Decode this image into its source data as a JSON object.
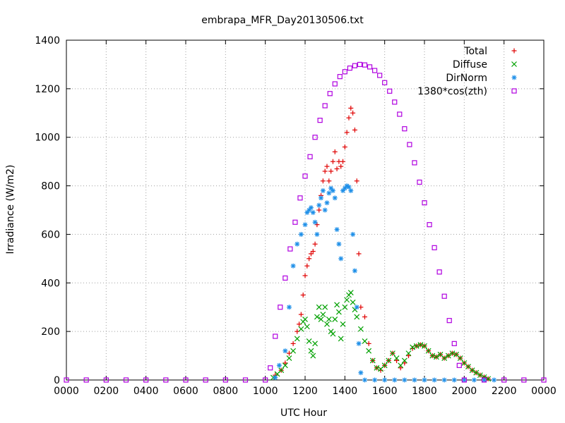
{
  "chart_data": {
    "type": "scatter",
    "title": "embrapa_MFR_Day20130506.txt",
    "xlabel": "UTC Hour",
    "ylabel": "Irradiance (W/m2)",
    "xlim": [
      0,
      24
    ],
    "ylim": [
      0,
      1400
    ],
    "grid": true,
    "legend_position": "top-right",
    "x_ticks": [
      {
        "value": 0,
        "label": "0000"
      },
      {
        "value": 2,
        "label": "0200"
      },
      {
        "value": 4,
        "label": "0400"
      },
      {
        "value": 6,
        "label": "0600"
      },
      {
        "value": 8,
        "label": "0800"
      },
      {
        "value": 10,
        "label": "1000"
      },
      {
        "value": 12,
        "label": "1200"
      },
      {
        "value": 14,
        "label": "1400"
      },
      {
        "value": 16,
        "label": "1600"
      },
      {
        "value": 18,
        "label": "1800"
      },
      {
        "value": 20,
        "label": "2000"
      },
      {
        "value": 22,
        "label": "2200"
      },
      {
        "value": 24,
        "label": "0000"
      }
    ],
    "y_ticks": [
      0,
      200,
      400,
      600,
      800,
      1000,
      1200,
      1400
    ],
    "series": [
      {
        "name": "Total",
        "marker": "+",
        "color": "#e00000",
        "points": [
          [
            10.5,
            20
          ],
          [
            10.8,
            40
          ],
          [
            11.0,
            70
          ],
          [
            11.2,
            110
          ],
          [
            11.4,
            150
          ],
          [
            11.6,
            200
          ],
          [
            11.7,
            230
          ],
          [
            11.8,
            270
          ],
          [
            11.9,
            350
          ],
          [
            12.0,
            430
          ],
          [
            12.1,
            470
          ],
          [
            12.2,
            500
          ],
          [
            12.3,
            520
          ],
          [
            12.4,
            530
          ],
          [
            12.5,
            560
          ],
          [
            12.6,
            640
          ],
          [
            12.7,
            700
          ],
          [
            12.8,
            760
          ],
          [
            12.9,
            820
          ],
          [
            13.0,
            860
          ],
          [
            13.1,
            880
          ],
          [
            13.2,
            820
          ],
          [
            13.3,
            860
          ],
          [
            13.4,
            900
          ],
          [
            13.5,
            940
          ],
          [
            13.6,
            870
          ],
          [
            13.7,
            900
          ],
          [
            13.8,
            880
          ],
          [
            13.9,
            900
          ],
          [
            14.0,
            960
          ],
          [
            14.1,
            1020
          ],
          [
            14.2,
            1080
          ],
          [
            14.3,
            1120
          ],
          [
            14.4,
            1100
          ],
          [
            14.5,
            1030
          ],
          [
            14.6,
            820
          ],
          [
            14.7,
            520
          ],
          [
            14.8,
            300
          ],
          [
            15.0,
            260
          ],
          [
            15.2,
            150
          ],
          [
            15.4,
            80
          ],
          [
            15.6,
            50
          ],
          [
            15.8,
            40
          ],
          [
            16.0,
            60
          ],
          [
            16.2,
            80
          ],
          [
            16.4,
            110
          ],
          [
            16.6,
            80
          ],
          [
            16.8,
            50
          ],
          [
            17.0,
            70
          ],
          [
            17.2,
            100
          ],
          [
            17.4,
            130
          ],
          [
            17.6,
            140
          ],
          [
            17.8,
            145
          ],
          [
            18.0,
            140
          ],
          [
            18.2,
            120
          ],
          [
            18.4,
            100
          ],
          [
            18.6,
            95
          ],
          [
            18.8,
            105
          ],
          [
            19.0,
            90
          ],
          [
            19.2,
            100
          ],
          [
            19.4,
            110
          ],
          [
            19.6,
            105
          ],
          [
            19.8,
            90
          ],
          [
            20.0,
            70
          ],
          [
            20.2,
            55
          ],
          [
            20.4,
            40
          ],
          [
            20.6,
            30
          ],
          [
            20.8,
            20
          ],
          [
            21.0,
            12
          ],
          [
            21.2,
            5
          ]
        ]
      },
      {
        "name": "Diffuse",
        "marker": "x",
        "color": "#00a000",
        "points": [
          [
            10.4,
            10
          ],
          [
            10.6,
            25
          ],
          [
            10.8,
            40
          ],
          [
            11.0,
            60
          ],
          [
            11.2,
            90
          ],
          [
            11.4,
            120
          ],
          [
            11.6,
            170
          ],
          [
            11.8,
            210
          ],
          [
            11.9,
            240
          ],
          [
            12.0,
            250
          ],
          [
            12.1,
            220
          ],
          [
            12.2,
            160
          ],
          [
            12.3,
            120
          ],
          [
            12.4,
            100
          ],
          [
            12.5,
            150
          ],
          [
            12.6,
            260
          ],
          [
            12.7,
            300
          ],
          [
            12.8,
            250
          ],
          [
            12.9,
            270
          ],
          [
            13.0,
            300
          ],
          [
            13.1,
            230
          ],
          [
            13.2,
            250
          ],
          [
            13.3,
            200
          ],
          [
            13.4,
            190
          ],
          [
            13.5,
            250
          ],
          [
            13.6,
            310
          ],
          [
            13.7,
            280
          ],
          [
            13.8,
            170
          ],
          [
            13.9,
            230
          ],
          [
            14.0,
            300
          ],
          [
            14.1,
            330
          ],
          [
            14.2,
            350
          ],
          [
            14.3,
            360
          ],
          [
            14.4,
            320
          ],
          [
            14.5,
            290
          ],
          [
            14.6,
            260
          ],
          [
            14.8,
            210
          ],
          [
            15.0,
            160
          ],
          [
            15.2,
            120
          ],
          [
            15.4,
            80
          ],
          [
            15.6,
            50
          ],
          [
            15.8,
            45
          ],
          [
            16.0,
            60
          ],
          [
            16.2,
            80
          ],
          [
            16.4,
            110
          ],
          [
            16.6,
            90
          ],
          [
            16.8,
            60
          ],
          [
            17.0,
            80
          ],
          [
            17.2,
            110
          ],
          [
            17.4,
            135
          ],
          [
            17.6,
            140
          ],
          [
            17.8,
            145
          ],
          [
            18.0,
            140
          ],
          [
            18.2,
            120
          ],
          [
            18.4,
            100
          ],
          [
            18.6,
            95
          ],
          [
            18.8,
            105
          ],
          [
            19.0,
            90
          ],
          [
            19.2,
            100
          ],
          [
            19.4,
            110
          ],
          [
            19.6,
            105
          ],
          [
            19.8,
            90
          ],
          [
            20.0,
            70
          ],
          [
            20.2,
            55
          ],
          [
            20.4,
            40
          ],
          [
            20.6,
            30
          ],
          [
            20.8,
            20
          ],
          [
            21.0,
            12
          ],
          [
            21.2,
            5
          ]
        ]
      },
      {
        "name": "DirNorm",
        "marker": "*",
        "color": "#1e8fe8",
        "points": [
          [
            10.5,
            10
          ],
          [
            10.7,
            60
          ],
          [
            11.0,
            120
          ],
          [
            11.2,
            300
          ],
          [
            11.4,
            470
          ],
          [
            11.6,
            560
          ],
          [
            11.8,
            600
          ],
          [
            12.0,
            640
          ],
          [
            12.1,
            690
          ],
          [
            12.2,
            700
          ],
          [
            12.3,
            710
          ],
          [
            12.4,
            690
          ],
          [
            12.5,
            650
          ],
          [
            12.6,
            600
          ],
          [
            12.7,
            720
          ],
          [
            12.8,
            750
          ],
          [
            12.9,
            780
          ],
          [
            13.0,
            700
          ],
          [
            13.1,
            730
          ],
          [
            13.2,
            770
          ],
          [
            13.3,
            790
          ],
          [
            13.4,
            780
          ],
          [
            13.5,
            750
          ],
          [
            13.6,
            620
          ],
          [
            13.7,
            560
          ],
          [
            13.8,
            500
          ],
          [
            13.9,
            780
          ],
          [
            14.0,
            790
          ],
          [
            14.1,
            800
          ],
          [
            14.2,
            795
          ],
          [
            14.3,
            780
          ],
          [
            14.4,
            600
          ],
          [
            14.5,
            450
          ],
          [
            14.6,
            300
          ],
          [
            14.7,
            150
          ],
          [
            14.8,
            30
          ],
          [
            15.0,
            0
          ],
          [
            15.5,
            0
          ],
          [
            16.0,
            0
          ],
          [
            16.5,
            0
          ],
          [
            17.0,
            0
          ],
          [
            17.5,
            0
          ],
          [
            18.0,
            0
          ],
          [
            18.5,
            0
          ],
          [
            19.0,
            0
          ],
          [
            19.5,
            0
          ],
          [
            20.0,
            0
          ],
          [
            20.5,
            0
          ],
          [
            21.0,
            0
          ],
          [
            21.5,
            0
          ]
        ]
      },
      {
        "name": "1380*cos(zth)",
        "marker": "square",
        "color": "#b000e0",
        "points": [
          [
            0,
            0
          ],
          [
            1,
            0
          ],
          [
            2,
            0
          ],
          [
            3,
            0
          ],
          [
            4,
            0
          ],
          [
            5,
            0
          ],
          [
            6,
            0
          ],
          [
            7,
            0
          ],
          [
            8,
            0
          ],
          [
            9,
            0
          ],
          [
            10,
            0
          ],
          [
            10.25,
            50
          ],
          [
            10.5,
            180
          ],
          [
            10.75,
            300
          ],
          [
            11.0,
            420
          ],
          [
            11.25,
            540
          ],
          [
            11.5,
            650
          ],
          [
            11.75,
            750
          ],
          [
            12.0,
            840
          ],
          [
            12.25,
            920
          ],
          [
            12.5,
            1000
          ],
          [
            12.75,
            1070
          ],
          [
            13.0,
            1130
          ],
          [
            13.25,
            1180
          ],
          [
            13.5,
            1220
          ],
          [
            13.75,
            1250
          ],
          [
            14.0,
            1270
          ],
          [
            14.25,
            1285
          ],
          [
            14.5,
            1295
          ],
          [
            14.75,
            1300
          ],
          [
            15.0,
            1298
          ],
          [
            15.25,
            1290
          ],
          [
            15.5,
            1275
          ],
          [
            15.75,
            1255
          ],
          [
            16.0,
            1225
          ],
          [
            16.25,
            1190
          ],
          [
            16.5,
            1145
          ],
          [
            16.75,
            1095
          ],
          [
            17.0,
            1035
          ],
          [
            17.25,
            970
          ],
          [
            17.5,
            895
          ],
          [
            17.75,
            815
          ],
          [
            18.0,
            730
          ],
          [
            18.25,
            640
          ],
          [
            18.5,
            545
          ],
          [
            18.75,
            445
          ],
          [
            19.0,
            345
          ],
          [
            19.25,
            245
          ],
          [
            19.5,
            150
          ],
          [
            19.75,
            60
          ],
          [
            20.0,
            0
          ],
          [
            21.0,
            0
          ],
          [
            22.0,
            0
          ],
          [
            23.0,
            0
          ],
          [
            24.0,
            0
          ]
        ]
      }
    ]
  }
}
